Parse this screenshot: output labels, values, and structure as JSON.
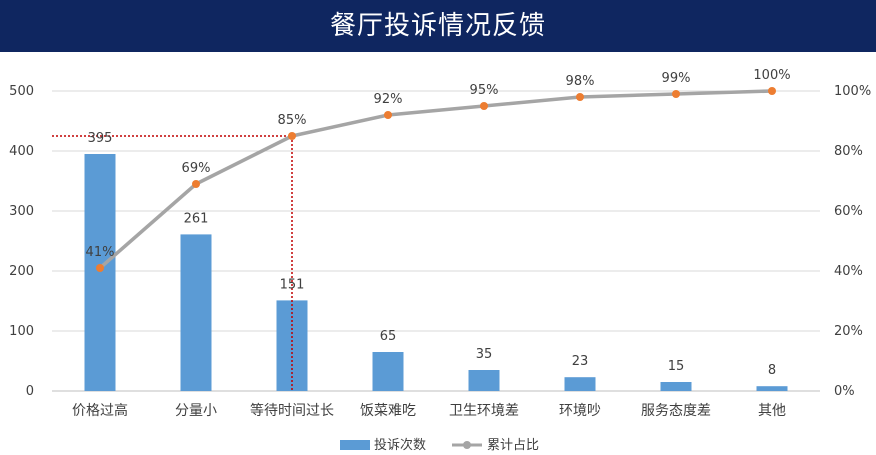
{
  "chart_data": {
    "type": "bar",
    "title": "餐厅投诉情况反馈",
    "categories": [
      "价格过高",
      "分量小",
      "等待时间过长",
      "饭菜难吃",
      "卫生环境差",
      "环境吵",
      "服务态度差",
      "其他"
    ],
    "series": [
      {
        "name": "投诉次数",
        "type": "bar",
        "axis": "left",
        "values": [
          395,
          261,
          151,
          65,
          35,
          23,
          15,
          8
        ],
        "labels": [
          "395",
          "261",
          "151",
          "65",
          "35",
          "23",
          "15",
          "8"
        ],
        "color": "#5b9bd5"
      },
      {
        "name": "累计占比",
        "type": "line",
        "axis": "right",
        "values": [
          41,
          69,
          85,
          92,
          95,
          98,
          99,
          100
        ],
        "labels": [
          "41%",
          "69%",
          "85%",
          "92%",
          "95%",
          "98%",
          "99%",
          "100%"
        ],
        "color": "#a5a5a5",
        "marker_color": "#ed7d31"
      }
    ],
    "y_left": {
      "ylim": [
        0,
        500
      ],
      "ticks": [
        "0",
        "100",
        "200",
        "300",
        "400",
        "500"
      ]
    },
    "y_right": {
      "ylim": [
        0,
        100
      ],
      "ticks": [
        "0%",
        "20%",
        "40%",
        "60%",
        "80%",
        "100%"
      ]
    },
    "reference_line": {
      "category_index": 2,
      "value_percent": 85,
      "color": "#c00000"
    },
    "grid": true,
    "legend_position": "bottom"
  }
}
